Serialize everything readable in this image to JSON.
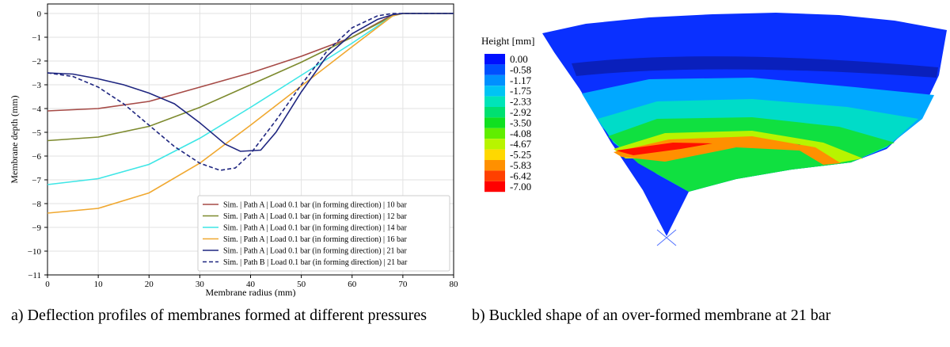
{
  "chart_data": {
    "type": "line",
    "xlabel": "Membrane radius (mm)",
    "ylabel": "Membrane depth (mm)",
    "xlim": [
      0,
      80
    ],
    "ylim": [
      -11,
      0.4
    ],
    "xticks": [
      0,
      10,
      20,
      30,
      40,
      50,
      60,
      70,
      80
    ],
    "yticks": [
      {
        "value": -11,
        "label": "−11"
      },
      {
        "value": -10,
        "label": "−10"
      },
      {
        "value": -9,
        "label": "−9"
      },
      {
        "value": -8,
        "label": "−8"
      },
      {
        "value": -7,
        "label": "−7"
      },
      {
        "value": -6,
        "label": "−6"
      },
      {
        "value": -5,
        "label": "−5"
      },
      {
        "value": -4,
        "label": "−4"
      },
      {
        "value": -3,
        "label": "−3"
      },
      {
        "value": -2,
        "label": "−2"
      },
      {
        "value": -1,
        "label": "−1"
      },
      0
    ],
    "grid": true,
    "legend": "lower right",
    "series": [
      {
        "name": "Sim. | Path A | Load 0.1 bar (in forming direction) | 10 bar",
        "color": "#a64a46",
        "dash": false,
        "x": [
          0,
          10,
          20,
          30,
          40,
          50,
          60,
          68,
          70,
          80
        ],
        "values": [
          -4.1,
          -4.0,
          -3.7,
          -3.1,
          -2.5,
          -1.8,
          -1.0,
          -0.05,
          0,
          0
        ]
      },
      {
        "name": "Sim. | Path A | Load 0.1 bar (in forming direction) | 12 bar",
        "color": "#7d8a2e",
        "dash": false,
        "x": [
          0,
          10,
          20,
          30,
          40,
          50,
          60,
          68,
          70,
          80
        ],
        "values": [
          -5.35,
          -5.2,
          -4.75,
          -3.95,
          -3.0,
          -2.05,
          -1.0,
          -0.1,
          0,
          0
        ]
      },
      {
        "name": "Sim. | Path A | Load 0.1 bar (in forming direction) | 14 bar",
        "color": "#3ee6e6",
        "dash": false,
        "x": [
          0,
          10,
          20,
          30,
          40,
          50,
          60,
          68,
          70,
          80
        ],
        "values": [
          -7.2,
          -6.95,
          -6.35,
          -5.25,
          -3.95,
          -2.6,
          -1.25,
          -0.1,
          0,
          0
        ]
      },
      {
        "name": "Sim. | Path A | Load 0.1 bar (in forming direction) | 16 bar",
        "color": "#f0a830",
        "dash": false,
        "x": [
          0,
          10,
          20,
          30,
          40,
          50,
          60,
          68,
          70,
          80
        ],
        "values": [
          -8.4,
          -8.2,
          -7.55,
          -6.3,
          -4.7,
          -3.05,
          -1.4,
          -0.1,
          0,
          0
        ]
      },
      {
        "name": "Sim. | Path A | Load 0.1 bar (in forming direction) | 21 bar",
        "color": "#1f2680",
        "dash": false,
        "x": [
          0,
          5,
          10,
          15,
          20,
          25,
          30,
          35,
          38,
          42,
          45,
          50,
          55,
          60,
          65,
          68,
          70,
          80
        ],
        "values": [
          -2.5,
          -2.55,
          -2.75,
          -3.0,
          -3.35,
          -3.8,
          -4.6,
          -5.5,
          -5.8,
          -5.75,
          -5.0,
          -3.3,
          -1.8,
          -0.85,
          -0.25,
          -0.05,
          0,
          0
        ]
      },
      {
        "name": "Sim. | Path B | Load 0.1 bar (in forming direction) | 21 bar",
        "color": "#1f2680",
        "dash": true,
        "x": [
          0,
          5,
          10,
          15,
          20,
          25,
          30,
          34,
          37,
          40,
          45,
          50,
          55,
          60,
          65,
          68,
          70,
          80
        ],
        "values": [
          -2.5,
          -2.65,
          -3.1,
          -3.8,
          -4.7,
          -5.6,
          -6.3,
          -6.6,
          -6.5,
          -5.9,
          -4.5,
          -3.0,
          -1.6,
          -0.6,
          -0.1,
          0,
          0,
          0
        ]
      }
    ]
  },
  "panel_b": {
    "colorbar": {
      "title": "Height [mm]",
      "ticks": [
        {
          "value": 0,
          "label": "0.00"
        },
        {
          "value": -0.58,
          "label": "-0.58"
        },
        {
          "value": -1.17,
          "label": "-1.17"
        },
        {
          "value": -1.75,
          "label": "-1.75"
        },
        {
          "value": -2.33,
          "label": "-2.33"
        },
        {
          "value": -2.92,
          "label": "-2.92"
        },
        {
          "value": -3.5,
          "label": "-3.50"
        },
        {
          "value": -4.08,
          "label": "-4.08"
        },
        {
          "value": -4.67,
          "label": "-4.67"
        },
        {
          "value": -5.25,
          "label": "-5.25"
        },
        {
          "value": -5.83,
          "label": "-5.83"
        },
        {
          "value": -6.42,
          "label": "-6.42"
        },
        {
          "value": -7,
          "label": "-7.00"
        }
      ],
      "colors": [
        "#0010ff",
        "#0050ff",
        "#0090ff",
        "#00c4f4",
        "#00e4b8",
        "#00e070",
        "#10e020",
        "#60ee00",
        "#b8f400",
        "#ffd800",
        "#ff9000",
        "#ff4000",
        "#ff0000"
      ]
    }
  },
  "captions": [
    "a) Deflection profiles of membranes formed at different pressures",
    "b) Buckled shape of an over-formed membrane at 21 bar"
  ]
}
